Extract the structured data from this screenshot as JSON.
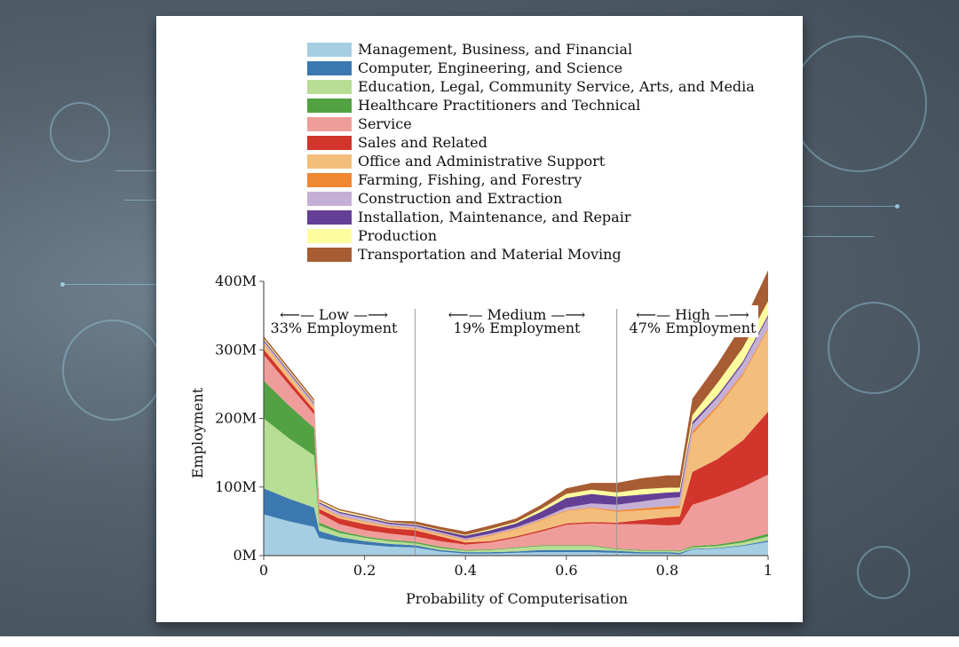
{
  "chart_data": {
    "type": "area",
    "title": "",
    "xlabel": "Probability of Computerisation",
    "ylabel": "Employment",
    "xlim": [
      0,
      1
    ],
    "ylim": [
      0,
      400
    ],
    "x_ticks": [
      "0",
      "0.2",
      "0.4",
      "0.6",
      "0.8",
      "1"
    ],
    "y_ticks": [
      "0M",
      "100M",
      "200M",
      "300M",
      "400M"
    ],
    "grid": false,
    "legend_position": "top",
    "region_dividers": [
      0.3,
      0.7
    ],
    "regions": [
      {
        "name": "Low",
        "share": "33% Employment"
      },
      {
        "name": "Medium",
        "share": "19% Employment"
      },
      {
        "name": "High",
        "share": "47% Employment"
      }
    ],
    "x": [
      0,
      0.05,
      0.1,
      0.11,
      0.15,
      0.2,
      0.25,
      0.3,
      0.35,
      0.4,
      0.45,
      0.5,
      0.55,
      0.6,
      0.65,
      0.7,
      0.75,
      0.8,
      0.825,
      0.85,
      0.9,
      0.95,
      1.0
    ],
    "series": [
      {
        "name": "Management, Business, and Financial",
        "color": "#a6cee3",
        "values": [
          60,
          50,
          42,
          26,
          20,
          16,
          13,
          12,
          6,
          3,
          3,
          4,
          5,
          5,
          5,
          4,
          3,
          3,
          2,
          9,
          10,
          14,
          20
        ]
      },
      {
        "name": "Computer, Engineering, and Science",
        "color": "#3b78b0",
        "values": [
          38,
          33,
          28,
          10,
          7,
          5,
          4,
          3,
          2,
          2,
          2,
          2,
          3,
          3,
          3,
          3,
          2,
          2,
          2,
          1,
          1,
          1,
          2
        ]
      },
      {
        "name": "Education, Legal, Community Service, Arts, and Media",
        "color": "#b8dd94",
        "values": [
          102,
          88,
          76,
          8,
          6,
          5,
          4,
          3,
          3,
          2,
          3,
          5,
          6,
          6,
          6,
          2,
          2,
          2,
          2,
          2,
          3,
          4,
          6
        ]
      },
      {
        "name": "Healthcare Practitioners and Technical",
        "color": "#52a243",
        "values": [
          55,
          48,
          40,
          4,
          3,
          2,
          2,
          2,
          2,
          1,
          1,
          1,
          1,
          1,
          1,
          1,
          1,
          1,
          1,
          2,
          2,
          3,
          4
        ]
      },
      {
        "name": "Service",
        "color": "#ef9d9b",
        "values": [
          38,
          30,
          20,
          14,
          10,
          9,
          9,
          8,
          8,
          8,
          10,
          14,
          20,
          30,
          32,
          36,
          38,
          36,
          38,
          60,
          70,
          78,
          86
        ]
      },
      {
        "name": "Sales and Related",
        "color": "#d1352c",
        "values": [
          8,
          7,
          6,
          6,
          8,
          9,
          8,
          9,
          7,
          3,
          2,
          2,
          2,
          2,
          2,
          2,
          6,
          12,
          12,
          48,
          55,
          68,
          92
        ]
      },
      {
        "name": "Office and Administrative Support",
        "color": "#f3be7c",
        "values": [
          8,
          7,
          5,
          4,
          3,
          3,
          2,
          2,
          3,
          3,
          8,
          10,
          14,
          18,
          20,
          16,
          14,
          12,
          12,
          55,
          75,
          95,
          120
        ]
      },
      {
        "name": "Farming, Fishing, and Forestry",
        "color": "#ef8733",
        "values": [
          1,
          1,
          1,
          1,
          1,
          1,
          1,
          1,
          1,
          1,
          1,
          1,
          1,
          1,
          1,
          2,
          3,
          4,
          4,
          4,
          3,
          3,
          2
        ]
      },
      {
        "name": "Construction and Extraction",
        "color": "#c5b0d5",
        "values": [
          3,
          3,
          3,
          3,
          4,
          4,
          3,
          3,
          2,
          2,
          2,
          2,
          2,
          4,
          6,
          8,
          10,
          12,
          12,
          10,
          12,
          14,
          16
        ]
      },
      {
        "name": "Installation, Maintenance, and Repair",
        "color": "#643f95",
        "values": [
          2,
          2,
          2,
          2,
          2,
          2,
          2,
          2,
          3,
          4,
          5,
          6,
          10,
          14,
          14,
          12,
          10,
          8,
          8,
          4,
          3,
          3,
          3
        ]
      },
      {
        "name": "Production",
        "color": "#fdfd9f",
        "values": [
          2,
          2,
          2,
          2,
          2,
          2,
          1,
          1,
          1,
          1,
          2,
          2,
          4,
          6,
          6,
          6,
          8,
          7,
          6,
          10,
          18,
          20,
          20
        ]
      },
      {
        "name": "Transportation and Material Moving",
        "color": "#a75c33",
        "values": [
          3,
          3,
          3,
          2,
          2,
          2,
          2,
          4,
          4,
          5,
          5,
          5,
          6,
          8,
          10,
          14,
          16,
          18,
          18,
          24,
          28,
          35,
          45
        ]
      }
    ]
  }
}
